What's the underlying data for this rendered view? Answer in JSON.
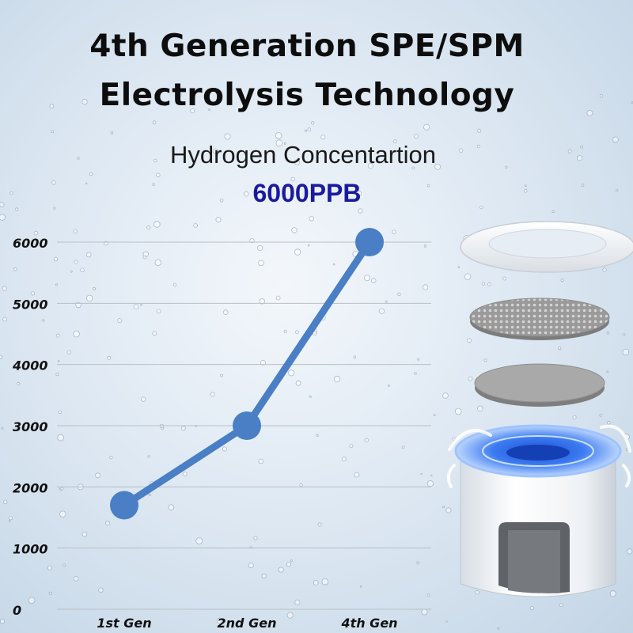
{
  "header": {
    "title_line1": "4th Generation SPE/SPM",
    "title_line2": "Electrolysis Technology",
    "subtitle": "Hydrogen Concentartion",
    "highlight": "6000PPB"
  },
  "chart_data": {
    "type": "line",
    "categories": [
      "1st Gen",
      "2nd Gen",
      "4th Gen"
    ],
    "series": [
      {
        "values": [
          1700,
          3000,
          6000
        ]
      }
    ],
    "yticks": [
      0,
      1000,
      2000,
      3000,
      4000,
      5000,
      6000
    ],
    "ylim": [
      0,
      6000
    ],
    "grid": true,
    "line_color": "#4a7fc6",
    "title": "",
    "xlabel": "",
    "ylabel": ""
  },
  "illustration": {
    "name": "electrolysis-module-exploded-view",
    "parts": [
      "gasket-ring",
      "perforated-electrode",
      "membrane-disc",
      "electrolysis-chamber"
    ]
  }
}
